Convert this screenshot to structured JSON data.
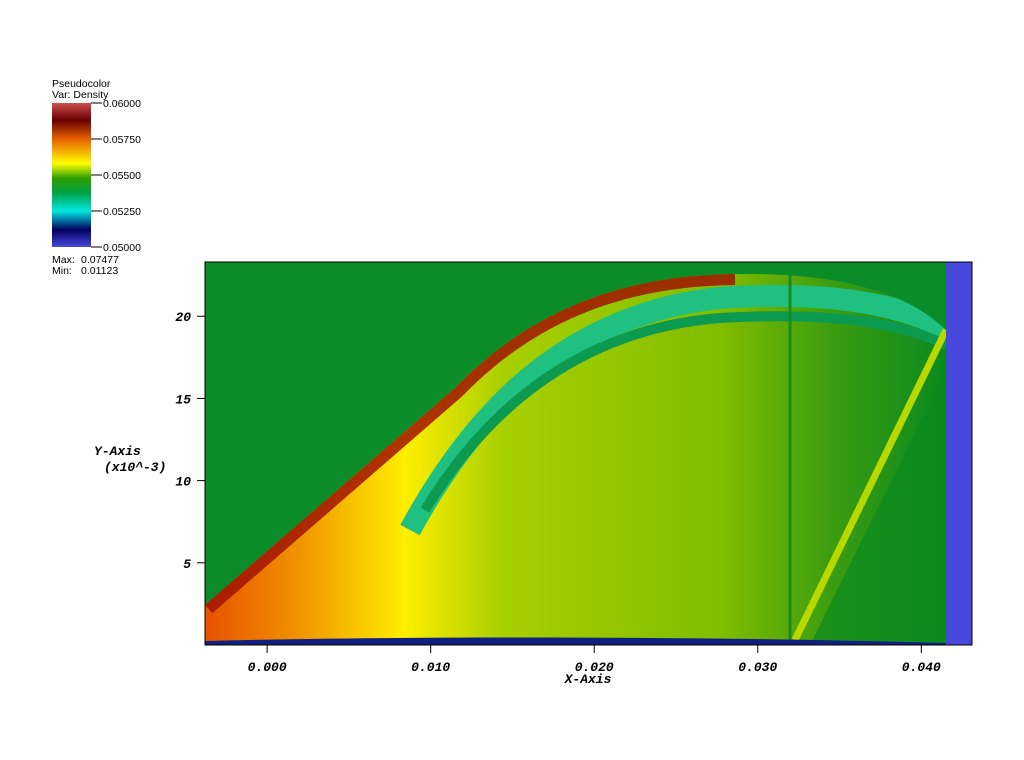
{
  "chart_data": {
    "type": "pseudocolor",
    "legend": {
      "title": "Pseudocolor",
      "variable": "Var: Density",
      "lim": [
        0.05,
        0.06
      ],
      "ticks": [
        {
          "value": 0.06,
          "label": "0.06000"
        },
        {
          "value": 0.0575,
          "label": "0.05750"
        },
        {
          "value": 0.055,
          "label": "0.05500"
        },
        {
          "value": 0.0525,
          "label": "0.05250"
        },
        {
          "value": 0.05,
          "label": "0.05000"
        }
      ],
      "max_label": "Max:",
      "max": 0.07477,
      "min_label": "Min:",
      "min": 0.01123
    },
    "xlabel": "X-Axis",
    "ylabel": "Y-Axis",
    "ylabel_scale": "(x10^-3)",
    "xlim": [
      -0.0038,
      0.0431
    ],
    "xticks": [
      {
        "value": 0,
        "label": "0.000"
      },
      {
        "value": 0.01,
        "label": "0.010"
      },
      {
        "value": 0.02,
        "label": "0.020"
      },
      {
        "value": 0.03,
        "label": "0.030"
      },
      {
        "value": 0.04,
        "label": "0.040"
      }
    ],
    "ylim": [
      0,
      23.3
    ],
    "yticks": [
      5,
      10,
      15,
      20
    ]
  }
}
